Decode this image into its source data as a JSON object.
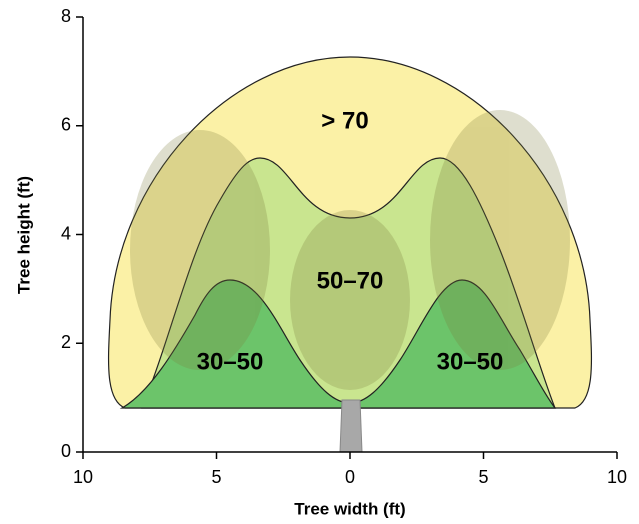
{
  "chart_data": {
    "type": "zone-diagram",
    "x_label": "Tree width (ft)",
    "y_label": "Tree height (ft)",
    "xlim": [
      -10,
      10
    ],
    "xticks": [
      {
        "value": -10,
        "label": "10"
      },
      {
        "value": -5,
        "label": "5"
      },
      0,
      5,
      {
        "value": 10,
        "label": "10"
      }
    ],
    "ylim": [
      0,
      8
    ],
    "yticks": [
      0,
      2,
      4,
      6,
      8
    ],
    "zones": [
      {
        "name": "> 70",
        "color": "#fbf1a6"
      },
      {
        "name": "50–70",
        "color": "#c9e58f"
      },
      {
        "name": "30–50",
        "color": "#6cc46a"
      },
      {
        "name": "30–50",
        "color": "#6cc46a"
      }
    ]
  }
}
